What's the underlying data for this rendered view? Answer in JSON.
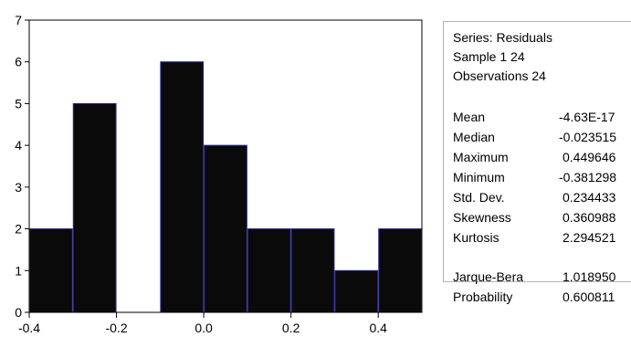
{
  "chart_data": {
    "type": "bar",
    "bin_edges": [
      -0.4,
      -0.3,
      -0.2,
      -0.1,
      0.0,
      0.1,
      0.2,
      0.3,
      0.4,
      0.5
    ],
    "values": [
      2,
      5,
      0,
      6,
      4,
      2,
      2,
      1,
      2
    ],
    "xlim": [
      -0.4,
      0.5
    ],
    "ylim": [
      0,
      7
    ],
    "xticks": [
      -0.4,
      -0.2,
      0.0,
      0.2,
      0.4
    ],
    "xtick_labels": [
      "-0.4",
      "-0.2",
      "0.0",
      "0.2",
      "0.4"
    ],
    "yticks": [
      0,
      1,
      2,
      3,
      4,
      5,
      6,
      7
    ],
    "ytick_labels": [
      "0",
      "1",
      "2",
      "3",
      "4",
      "5",
      "6",
      "7"
    ],
    "bar_color": "#0a0a0a",
    "bar_edge_color": "#2a2a9a",
    "grid": false
  },
  "stats": {
    "series": "Series: Residuals",
    "sample": "Sample 1 24",
    "observations": "Observations 24",
    "rows": [
      {
        "label": "Mean",
        "value": "-4.63E-17"
      },
      {
        "label": "Median",
        "value": "-0.023515"
      },
      {
        "label": "Maximum",
        "value": "0.449646"
      },
      {
        "label": "Minimum",
        "value": "-0.381298"
      },
      {
        "label": "Std. Dev.",
        "value": "0.234433"
      },
      {
        "label": "Skewness",
        "value": "0.360988"
      },
      {
        "label": "Kurtosis",
        "value": "2.294521"
      }
    ],
    "test_rows": [
      {
        "label": "Jarque-Bera",
        "value": "1.018950"
      },
      {
        "label": "Probability",
        "value": "0.600811"
      }
    ]
  }
}
